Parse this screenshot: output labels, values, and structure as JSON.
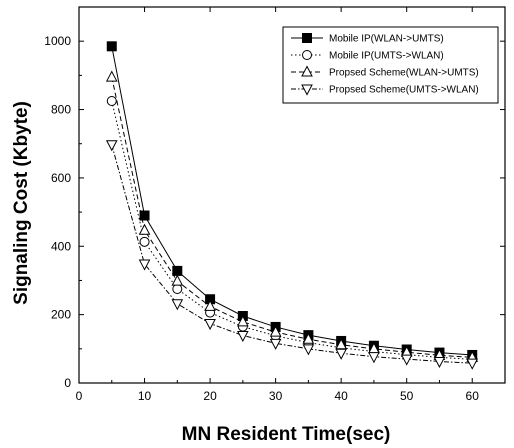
{
  "chart_data": {
    "type": "line",
    "xlabel": "MN Resident Time(sec)",
    "ylabel": "Signaling Cost (Kbyte)",
    "xlim": [
      0,
      65
    ],
    "ylim": [
      0,
      1100
    ],
    "xticks": [
      0,
      10,
      20,
      30,
      40,
      50,
      60
    ],
    "yticks": [
      0,
      200,
      400,
      600,
      800,
      1000
    ],
    "grid": false,
    "legend_position": "top-right",
    "x": [
      5,
      10,
      15,
      20,
      25,
      30,
      35,
      40,
      45,
      50,
      55,
      60
    ],
    "series": [
      {
        "name": "Mobile IP(WLAN->UMTS)",
        "marker": "filled-square",
        "line": "solid",
        "values": [
          985,
          490,
          328,
          245,
          196,
          164,
          140,
          123,
          109,
          98,
          89,
          82
        ]
      },
      {
        "name": "Mobile IP(UMTS->WLAN)",
        "marker": "open-circle",
        "line": "dotted",
        "values": [
          825,
          413,
          275,
          206,
          165,
          138,
          118,
          103,
          92,
          83,
          75,
          69
        ]
      },
      {
        "name": "Propsed Scheme(WLAN->UMTS)",
        "marker": "open-triangle-up",
        "line": "dashed",
        "values": [
          895,
          447,
          298,
          224,
          179,
          149,
          128,
          112,
          100,
          90,
          81,
          75
        ]
      },
      {
        "name": "Propsed Scheme(UMTS->WLAN)",
        "marker": "open-triangle-down",
        "line": "dash-dot",
        "values": [
          697,
          348,
          232,
          174,
          139,
          116,
          100,
          87,
          77,
          70,
          63,
          58
        ]
      }
    ]
  }
}
